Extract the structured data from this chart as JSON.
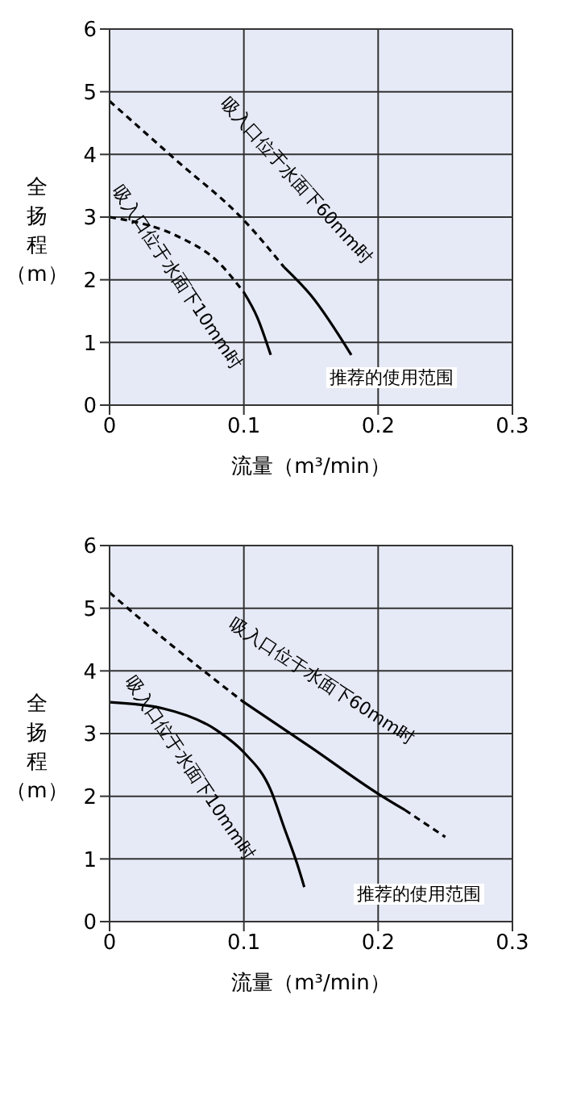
{
  "chart_data": [
    {
      "type": "line",
      "xlabel": "流量（m³/min）",
      "ylabel": "全扬程（m）",
      "xlim": [
        0,
        0.3
      ],
      "ylim": [
        0,
        6
      ],
      "xticks": [
        0,
        0.1,
        0.2,
        0.3
      ],
      "yticks": [
        0,
        1,
        2,
        3,
        4,
        5,
        6
      ],
      "grid": true,
      "marker": "none",
      "series": [
        {
          "color": "#000000",
          "line_style": "dashed",
          "x": [
            0,
            0.05,
            0.1,
            0.13
          ],
          "values": [
            4.85,
            3.9,
            2.95,
            2.2
          ]
        },
        {
          "color": "#000000",
          "line_style": "solid",
          "x": [
            0.13,
            0.15,
            0.18
          ],
          "values": [
            2.2,
            1.75,
            0.8
          ]
        },
        {
          "color": "#000000",
          "line_style": "dashed",
          "x": [
            0,
            0.05,
            0.08,
            0.1
          ],
          "values": [
            3,
            2.7,
            2.3,
            1.8
          ]
        },
        {
          "color": "#000000",
          "line_style": "solid",
          "x": [
            0.1,
            0.11,
            0.12
          ],
          "values": [
            1.8,
            1.4,
            0.8
          ]
        }
      ],
      "annotations": [
        "吸入口位于水面下60mm时",
        "吸入口位于水面下10mm时",
        "推荐的使用范围"
      ]
    },
    {
      "type": "line",
      "xlabel": "流量（m³/min）",
      "ylabel": "全扬程（m）",
      "xlim": [
        0,
        0.3
      ],
      "ylim": [
        0,
        6
      ],
      "xticks": [
        0,
        0.1,
        0.2,
        0.3
      ],
      "yticks": [
        0,
        1,
        2,
        3,
        4,
        5,
        6
      ],
      "grid": true,
      "marker": "none",
      "series": [
        {
          "color": "#000000",
          "line_style": "dashed",
          "x": [
            0,
            0.04,
            0.1
          ],
          "values": [
            5.25,
            4.52,
            3.5
          ]
        },
        {
          "color": "#000000",
          "line_style": "solid",
          "x": [
            0.1,
            0.15,
            0.2,
            0.22
          ],
          "values": [
            3.5,
            2.78,
            2.04,
            1.78
          ]
        },
        {
          "color": "#000000",
          "line_style": "dashed",
          "x": [
            0.22,
            0.25
          ],
          "values": [
            1.78,
            1.35
          ]
        },
        {
          "color": "#000000",
          "line_style": "solid",
          "x": [
            0,
            0.04,
            0.08,
            0.1,
            0.12,
            0.13,
            0.14,
            0.145
          ],
          "values": [
            3.5,
            3.4,
            3.05,
            2.7,
            2.1,
            1.5,
            0.9,
            0.55
          ]
        }
      ],
      "annotations": [
        "吸入口位于水面下60mm时",
        "吸入口位于水面下10mm时",
        "推荐的使用范围"
      ]
    }
  ]
}
